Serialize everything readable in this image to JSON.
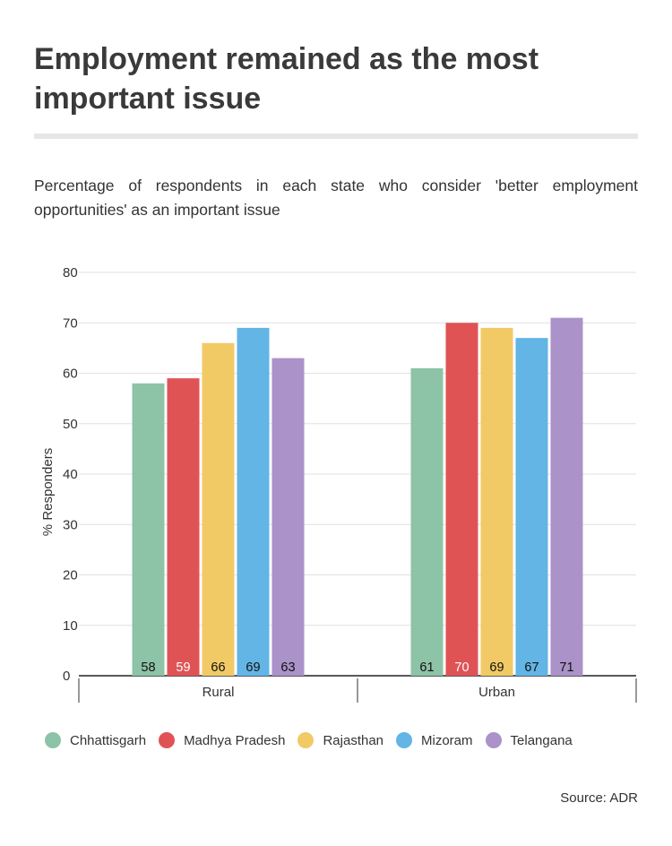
{
  "header": {
    "title": "Employment remained as the most important issue",
    "subtitle": "Percentage of respondents in each state who consider 'better employment opportunities' as an important issue"
  },
  "footer": {
    "source": "Source: ADR"
  },
  "chart_data": {
    "type": "bar",
    "title": "Employment remained as the most important issue",
    "ylabel": "% Responders",
    "xlabel": "",
    "ylim": [
      0,
      80
    ],
    "yticks": [
      0,
      10,
      20,
      30,
      40,
      50,
      60,
      70,
      80
    ],
    "grid": true,
    "legend_position": "bottom",
    "categories": [
      "Rural",
      "Urban"
    ],
    "series": [
      {
        "name": "Chhattisgarh",
        "color": "#8dc3a7",
        "values": [
          58,
          61
        ]
      },
      {
        "name": "Madhya Pradesh",
        "color": "#e05355",
        "values": [
          59,
          70
        ]
      },
      {
        "name": "Rajasthan",
        "color": "#f1ca66",
        "values": [
          66,
          69
        ]
      },
      {
        "name": "Mizoram",
        "color": "#62b5e5",
        "values": [
          69,
          67
        ]
      },
      {
        "name": "Telangana",
        "color": "#ab92c9",
        "values": [
          63,
          71
        ]
      }
    ],
    "label_colors": [
      "#111111",
      "#ffffff",
      "#111111",
      "#111111",
      "#111111"
    ]
  }
}
